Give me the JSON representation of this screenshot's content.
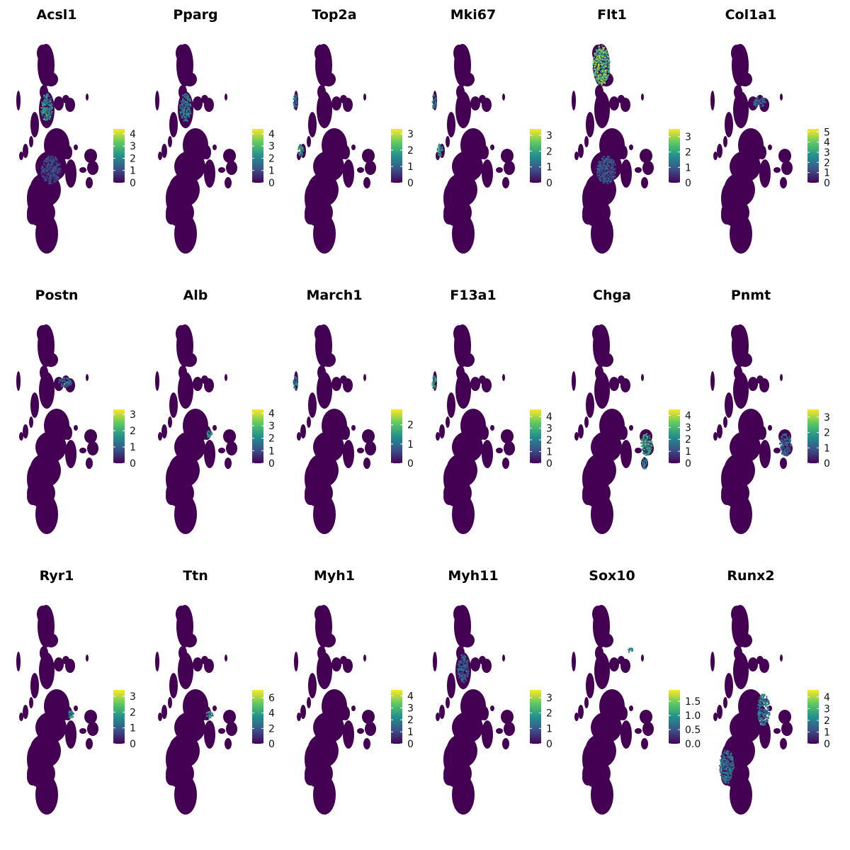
{
  "chart_data": {
    "type": "scatter",
    "description_free": true,
    "layout": "6x3 feature plot grid",
    "colormap": [
      "#440154",
      "#3b528b",
      "#21918c",
      "#5ec962",
      "#fde725"
    ],
    "axes_visible": false,
    "grid": false,
    "legend_placement": "right",
    "panels": [
      {
        "gene": "Acsl1",
        "ticks": [
          "0",
          "1",
          "2",
          "3",
          "4"
        ],
        "vmax": 4.4,
        "hotspots": [
          {
            "cluster": "mid-left-lobe",
            "level": 0.55
          },
          {
            "cluster": "central-body",
            "level": 0.25
          }
        ]
      },
      {
        "gene": "Pparg",
        "ticks": [
          "0",
          "1",
          "2",
          "3",
          "4"
        ],
        "vmax": 4.4,
        "hotspots": [
          {
            "cluster": "mid-left-lobe",
            "level": 0.45
          }
        ]
      },
      {
        "gene": "Top2a",
        "ticks": [
          "0",
          "1",
          "2",
          "3"
        ],
        "vmax": 3.3,
        "hotspots": [
          {
            "cluster": "left-islet",
            "level": 0.55
          },
          {
            "cluster": "far-left-bar",
            "level": 0.4
          }
        ]
      },
      {
        "gene": "Mki67",
        "ticks": [
          "0",
          "1",
          "2",
          "3"
        ],
        "vmax": 3.4,
        "hotspots": [
          {
            "cluster": "left-islet",
            "level": 0.5
          },
          {
            "cluster": "far-left-bar",
            "level": 0.4
          }
        ]
      },
      {
        "gene": "Flt1",
        "ticks": [
          "0",
          "1",
          "2",
          "3"
        ],
        "vmax": 3.5,
        "hotspots": [
          {
            "cluster": "top-lobe",
            "level": 0.75
          },
          {
            "cluster": "central-body",
            "level": 0.3
          }
        ]
      },
      {
        "gene": "Col1a1",
        "ticks": [
          "0",
          "1",
          "2",
          "3",
          "4",
          "5"
        ],
        "vmax": 5.3,
        "hotspots": [
          {
            "cluster": "upper-right-islets",
            "level": 0.35
          }
        ]
      },
      {
        "gene": "Postn",
        "ticks": [
          "0",
          "1",
          "2",
          "3"
        ],
        "vmax": 3.3,
        "hotspots": [
          {
            "cluster": "upper-right-islets",
            "level": 0.35
          }
        ]
      },
      {
        "gene": "Alb",
        "ticks": [
          "0",
          "1",
          "2",
          "3",
          "4"
        ],
        "vmax": 4.3,
        "hotspots": [
          {
            "cluster": "small-right-speck",
            "level": 0.5
          }
        ]
      },
      {
        "gene": "March1",
        "ticks": [
          "0",
          "1",
          "2"
        ],
        "vmax": 2.8,
        "hotspots": [
          {
            "cluster": "far-left-bar",
            "level": 0.45
          }
        ]
      },
      {
        "gene": "F13a1",
        "ticks": [
          "0",
          "1",
          "2",
          "3",
          "4"
        ],
        "vmax": 4.6,
        "hotspots": [
          {
            "cluster": "far-left-bar",
            "level": 0.55
          }
        ]
      },
      {
        "gene": "Chga",
        "ticks": [
          "0",
          "1",
          "2",
          "3",
          "4"
        ],
        "vmax": 4.5,
        "hotspots": [
          {
            "cluster": "right-clover",
            "level": 0.6
          },
          {
            "cluster": "right-stalk",
            "level": 0.45
          }
        ]
      },
      {
        "gene": "Pnmt",
        "ticks": [
          "0",
          "1",
          "2",
          "3"
        ],
        "vmax": 3.5,
        "hotspots": [
          {
            "cluster": "right-clover",
            "level": 0.35
          }
        ]
      },
      {
        "gene": "Ryr1",
        "ticks": [
          "0",
          "1",
          "2",
          "3"
        ],
        "vmax": 3.4,
        "hotspots": [
          {
            "cluster": "small-right-speck",
            "level": 0.5
          }
        ]
      },
      {
        "gene": "Ttn",
        "ticks": [
          "0",
          "2",
          "4",
          "6"
        ],
        "vmax": 7.0,
        "hotspots": [
          {
            "cluster": "small-right-speck",
            "level": 0.55
          }
        ]
      },
      {
        "gene": "Myh1",
        "ticks": [
          "0",
          "1",
          "2",
          "3",
          "4"
        ],
        "vmax": 4.5,
        "hotspots": []
      },
      {
        "gene": "Myh11",
        "ticks": [
          "0",
          "1",
          "2",
          "3"
        ],
        "vmax": 3.5,
        "hotspots": [
          {
            "cluster": "mid-left-lobe",
            "level": 0.35
          }
        ]
      },
      {
        "gene": "Sox10",
        "ticks": [
          "0.0",
          "0.5",
          "1.0",
          "1.5"
        ],
        "vmax": 1.9,
        "hotspots": [
          {
            "cluster": "tiny-top-right",
            "level": 0.5
          }
        ]
      },
      {
        "gene": "Runx2",
        "ticks": [
          "0",
          "1",
          "2",
          "3",
          "4"
        ],
        "vmax": 4.6,
        "hotspots": [
          {
            "cluster": "lower-left-body",
            "level": 0.4
          },
          {
            "cluster": "right-of-center",
            "level": 0.45
          }
        ]
      }
    ]
  }
}
